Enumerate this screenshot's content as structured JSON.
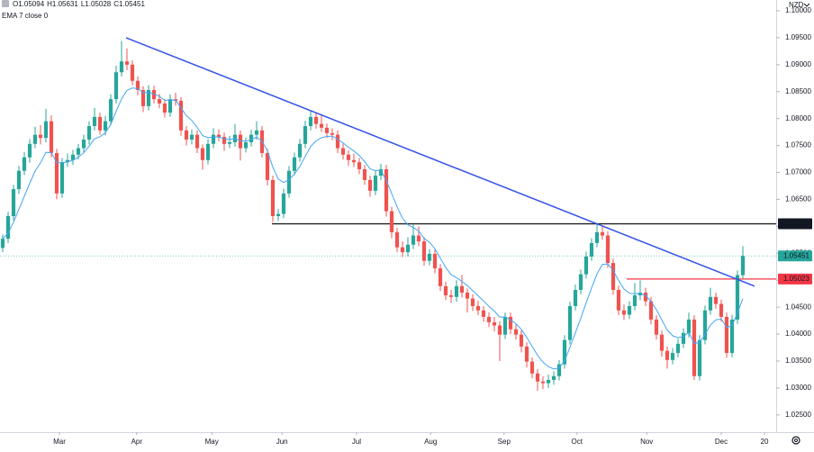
{
  "chart_data": {
    "type": "candlestick",
    "ohlc_header": [
      "O1.05094",
      "H1.05631",
      "L1.05028",
      "C1.05451"
    ],
    "indicator": {
      "label": "EMA 7 close 0",
      "period": 7,
      "color": "#42a5f5"
    },
    "currency": "NZD",
    "up_color": "#26a69a",
    "down_color": "#ef5350",
    "xlim": [
      -0.5,
      143.17
    ],
    "xticks": [
      {
        "value": 10.5,
        "label": "Mar"
      },
      {
        "value": 24.8,
        "label": "Apr"
      },
      {
        "value": 38.7,
        "label": "May"
      },
      {
        "value": 51.7,
        "label": "Jun"
      },
      {
        "value": 65.5,
        "label": "Jul"
      },
      {
        "value": 79.2,
        "label": "Aug"
      },
      {
        "value": 92.8,
        "label": "Sep"
      },
      {
        "value": 106.3,
        "label": "Oct"
      },
      {
        "value": 119.2,
        "label": "Nov"
      },
      {
        "value": 133,
        "label": "Dec"
      },
      {
        "value": 141,
        "label": "20"
      }
    ],
    "ylim": [
      1.0218,
      1.102
    ],
    "yticks": [
      {
        "value": 1.1,
        "label": "1.10000"
      },
      {
        "value": 1.095,
        "label": "1.09500"
      },
      {
        "value": 1.09,
        "label": "1.09000"
      },
      {
        "value": 1.085,
        "label": "1.08500"
      },
      {
        "value": 1.08,
        "label": "1.08000"
      },
      {
        "value": 1.075,
        "label": "1.07500"
      },
      {
        "value": 1.07,
        "label": "1.07000"
      },
      {
        "value": 1.065,
        "label": "1.06500"
      },
      {
        "value": 1.06,
        "label": "1.06000"
      },
      {
        "value": 1.055,
        "label": "1.05500"
      },
      {
        "value": 1.05,
        "label": "1.05000"
      },
      {
        "value": 1.045,
        "label": "1.04500"
      },
      {
        "value": 1.04,
        "label": "1.04000"
      },
      {
        "value": 1.035,
        "label": "1.03500"
      },
      {
        "value": 1.03,
        "label": "1.03000"
      },
      {
        "value": 1.025,
        "label": "1.02500"
      }
    ],
    "trend_line": {
      "color": "#3352e8",
      "x": [
        22.83,
        139.17
      ],
      "y": [
        1.095,
        1.0489
      ]
    },
    "levels": [
      {
        "start": 49.83,
        "price": 1.06047,
        "color": "#222222"
      },
      {
        "start": 115.5,
        "price": 1.05023,
        "color": "#f23645"
      }
    ],
    "candles": [
      [
        1.056,
        1.0585,
        1.0552,
        1.0577
      ],
      [
        1.0577,
        1.0627,
        1.0569,
        1.0619
      ],
      [
        1.0619,
        1.0677,
        1.0611,
        1.0669
      ],
      [
        1.0669,
        1.0712,
        1.066,
        1.0703
      ],
      [
        1.0703,
        1.0738,
        1.0695,
        1.0728
      ],
      [
        1.0728,
        1.0762,
        1.0718,
        1.0753
      ],
      [
        1.0753,
        1.0785,
        1.0745,
        1.077
      ],
      [
        1.077,
        1.0788,
        1.0752,
        1.0764
      ],
      [
        1.0764,
        1.0818,
        1.0756,
        1.0795
      ],
      [
        1.0795,
        1.0806,
        1.0728,
        1.0736
      ],
      [
        1.0736,
        1.0744,
        1.065,
        1.0661
      ],
      [
        1.0661,
        1.0727,
        1.0653,
        1.0719
      ],
      [
        1.0719,
        1.0735,
        1.071,
        1.0723
      ],
      [
        1.0723,
        1.0742,
        1.0714,
        1.0733
      ],
      [
        1.0733,
        1.0753,
        1.0724,
        1.0745
      ],
      [
        1.0745,
        1.077,
        1.0737,
        1.0761
      ],
      [
        1.0761,
        1.0795,
        1.0752,
        1.0786
      ],
      [
        1.0786,
        1.082,
        1.0778,
        1.0803
      ],
      [
        1.0803,
        1.0811,
        1.077,
        1.0778
      ],
      [
        1.0778,
        1.0805,
        1.0769,
        1.0795
      ],
      [
        1.0795,
        1.0845,
        1.0787,
        1.0836
      ],
      [
        1.0836,
        1.0898,
        1.0828,
        1.0886
      ],
      [
        1.0886,
        1.0944,
        1.0878,
        1.0906
      ],
      [
        1.0906,
        1.093,
        1.089,
        1.09
      ],
      [
        1.09,
        1.0908,
        1.0862,
        1.087
      ],
      [
        1.087,
        1.0878,
        1.0843,
        1.0853
      ],
      [
        1.0853,
        1.086,
        1.0812,
        1.0823
      ],
      [
        1.0823,
        1.0862,
        1.0815,
        1.0853
      ],
      [
        1.0853,
        1.0861,
        1.0828,
        1.0836
      ],
      [
        1.0836,
        1.0846,
        1.0819,
        1.0828
      ],
      [
        1.0828,
        1.0836,
        1.0802,
        1.0811
      ],
      [
        1.0811,
        1.0845,
        1.0803,
        1.0836
      ],
      [
        1.0836,
        1.0848,
        1.0824,
        1.0833
      ],
      [
        1.0833,
        1.084,
        1.0768,
        1.0778
      ],
      [
        1.0778,
        1.0786,
        1.075,
        1.0761
      ],
      [
        1.0761,
        1.078,
        1.0752,
        1.077
      ],
      [
        1.077,
        1.0778,
        1.0736,
        1.0745
      ],
      [
        1.0745,
        1.0752,
        1.0705,
        1.0723
      ],
      [
        1.0723,
        1.0762,
        1.0715,
        1.0753
      ],
      [
        1.0753,
        1.0782,
        1.0745,
        1.077
      ],
      [
        1.077,
        1.078,
        1.0758,
        1.0766
      ],
      [
        1.0766,
        1.0774,
        1.074,
        1.0753
      ],
      [
        1.0753,
        1.0768,
        1.0745,
        1.0756
      ],
      [
        1.0756,
        1.079,
        1.0748,
        1.077
      ],
      [
        1.077,
        1.0778,
        1.0722,
        1.0745
      ],
      [
        1.0745,
        1.0765,
        1.0737,
        1.0756
      ],
      [
        1.0756,
        1.0779,
        1.0748,
        1.077
      ],
      [
        1.077,
        1.0795,
        1.0761,
        1.0778
      ],
      [
        1.0778,
        1.0786,
        1.0728,
        1.0736
      ],
      [
        1.0736,
        1.0744,
        1.0676,
        1.0686
      ],
      [
        1.0686,
        1.0694,
        1.0608,
        1.0619
      ],
      [
        1.0619,
        1.0632,
        1.061,
        1.0623
      ],
      [
        1.0623,
        1.067,
        1.0615,
        1.0661
      ],
      [
        1.0661,
        1.0712,
        1.0653,
        1.0703
      ],
      [
        1.0703,
        1.0737,
        1.0695,
        1.0728
      ],
      [
        1.0728,
        1.0762,
        1.072,
        1.0753
      ],
      [
        1.0753,
        1.0796,
        1.0745,
        1.0786
      ],
      [
        1.0786,
        1.0814,
        1.0778,
        1.0803
      ],
      [
        1.0803,
        1.0811,
        1.0781,
        1.079
      ],
      [
        1.079,
        1.0808,
        1.0775,
        1.0783
      ],
      [
        1.0783,
        1.0791,
        1.0764,
        1.0773
      ],
      [
        1.0773,
        1.0782,
        1.076,
        1.077
      ],
      [
        1.077,
        1.0778,
        1.0736,
        1.0745
      ],
      [
        1.0745,
        1.0753,
        1.0724,
        1.0733
      ],
      [
        1.0733,
        1.0741,
        1.0712,
        1.0723
      ],
      [
        1.0723,
        1.0735,
        1.071,
        1.0719
      ],
      [
        1.0719,
        1.0727,
        1.0697,
        1.0706
      ],
      [
        1.0706,
        1.0714,
        1.0677,
        1.0686
      ],
      [
        1.0686,
        1.0694,
        1.0655,
        1.0666
      ],
      [
        1.0666,
        1.0703,
        1.0658,
        1.0694
      ],
      [
        1.0694,
        1.0716,
        1.0686,
        1.0706
      ],
      [
        1.0706,
        1.0714,
        1.0618,
        1.0628
      ],
      [
        1.0628,
        1.0636,
        1.0578,
        1.0589
      ],
      [
        1.0589,
        1.0597,
        1.0552,
        1.0561
      ],
      [
        1.0561,
        1.0572,
        1.0543,
        1.0552
      ],
      [
        1.0552,
        1.058,
        1.0544,
        1.0566
      ],
      [
        1.0566,
        1.0603,
        1.0558,
        1.0583
      ],
      [
        1.0583,
        1.06,
        1.0563,
        1.0572
      ],
      [
        1.0572,
        1.058,
        1.0527,
        1.0536
      ],
      [
        1.0536,
        1.0558,
        1.0528,
        1.0549
      ],
      [
        1.0549,
        1.0557,
        1.0513,
        1.0522
      ],
      [
        1.0522,
        1.053,
        1.048,
        1.0489
      ],
      [
        1.0489,
        1.0497,
        1.0463,
        1.0472
      ],
      [
        1.0472,
        1.0482,
        1.0458,
        1.0469
      ],
      [
        1.0469,
        1.05,
        1.046,
        1.0489
      ],
      [
        1.0489,
        1.051,
        1.0468,
        1.0477
      ],
      [
        1.0477,
        1.0485,
        1.044,
        1.0466
      ],
      [
        1.0466,
        1.0474,
        1.0443,
        1.0452
      ],
      [
        1.0452,
        1.0462,
        1.0435,
        1.0444
      ],
      [
        1.0444,
        1.0452,
        1.0423,
        1.0432
      ],
      [
        1.0432,
        1.044,
        1.0413,
        1.0422
      ],
      [
        1.0422,
        1.0432,
        1.0405,
        1.0416
      ],
      [
        1.0416,
        1.0424,
        1.035,
        1.0399
      ],
      [
        1.0399,
        1.044,
        1.0391,
        1.0432
      ],
      [
        1.0432,
        1.044,
        1.04,
        1.0409
      ],
      [
        1.0409,
        1.0418,
        1.039,
        1.0399
      ],
      [
        1.0399,
        1.0407,
        1.0366,
        1.0377
      ],
      [
        1.0377,
        1.0385,
        1.0338,
        1.0349
      ],
      [
        1.0349,
        1.0357,
        1.0318,
        1.0327
      ],
      [
        1.0327,
        1.0335,
        1.0295,
        1.0312
      ],
      [
        1.0312,
        1.0322,
        1.0298,
        1.0309
      ],
      [
        1.0309,
        1.0325,
        1.03,
        1.0315
      ],
      [
        1.0315,
        1.0331,
        1.0306,
        1.0322
      ],
      [
        1.0322,
        1.0352,
        1.0314,
        1.0344
      ],
      [
        1.0344,
        1.0398,
        1.0336,
        1.0389
      ],
      [
        1.0389,
        1.046,
        1.0381,
        1.0452
      ],
      [
        1.0452,
        1.0492,
        1.0444,
        1.0482
      ],
      [
        1.0482,
        1.052,
        1.0474,
        1.0511
      ],
      [
        1.0511,
        1.0553,
        1.0503,
        1.0544
      ],
      [
        1.0544,
        1.0578,
        1.0536,
        1.0569
      ],
      [
        1.0569,
        1.0605,
        1.0561,
        1.0589
      ],
      [
        1.0589,
        1.06,
        1.0575,
        1.0583
      ],
      [
        1.0583,
        1.0591,
        1.0523,
        1.0532
      ],
      [
        1.0532,
        1.054,
        1.0473,
        1.0482
      ],
      [
        1.0482,
        1.049,
        1.0435,
        1.0444
      ],
      [
        1.0444,
        1.0455,
        1.0426,
        1.0436
      ],
      [
        1.0436,
        1.0461,
        1.0428,
        1.0452
      ],
      [
        1.0452,
        1.0495,
        1.0444,
        1.0472
      ],
      [
        1.0472,
        1.05,
        1.0463,
        1.0477
      ],
      [
        1.0477,
        1.0486,
        1.0452,
        1.0461
      ],
      [
        1.0461,
        1.0469,
        1.0418,
        1.0427
      ],
      [
        1.0427,
        1.0435,
        1.039,
        1.0399
      ],
      [
        1.0399,
        1.0407,
        1.0358,
        1.0369
      ],
      [
        1.0369,
        1.0377,
        1.0336,
        1.0352
      ],
      [
        1.0352,
        1.0374,
        1.0344,
        1.0365
      ],
      [
        1.0365,
        1.0391,
        1.0357,
        1.0382
      ],
      [
        1.0382,
        1.0411,
        1.0374,
        1.0402
      ],
      [
        1.0402,
        1.044,
        1.0394,
        1.0427
      ],
      [
        1.0427,
        1.0435,
        1.0315,
        1.0322
      ],
      [
        1.0322,
        1.0398,
        1.0314,
        1.0389
      ],
      [
        1.0389,
        1.0453,
        1.0381,
        1.0444
      ],
      [
        1.0444,
        1.0486,
        1.0436,
        1.0469
      ],
      [
        1.0469,
        1.0477,
        1.0447,
        1.0456
      ],
      [
        1.0456,
        1.0464,
        1.0423,
        1.0432
      ],
      [
        1.0432,
        1.044,
        1.0356,
        1.0365
      ],
      [
        1.0365,
        1.0436,
        1.0357,
        1.0427
      ],
      [
        1.0427,
        1.0518,
        1.0419,
        1.05094
      ],
      [
        1.05094,
        1.05631,
        1.05028,
        1.05451
      ]
    ]
  }
}
